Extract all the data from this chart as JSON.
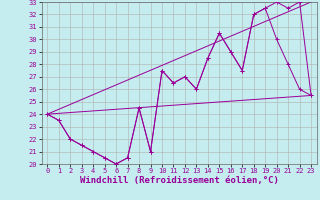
{
  "xlabel": "Windchill (Refroidissement éolien,°C)",
  "background_color": "#c5ecee",
  "grid_color": "#b0b0b0",
  "line_color": "#990099",
  "xlim": [
    -0.5,
    23.5
  ],
  "ylim": [
    20,
    33
  ],
  "yticks": [
    20,
    21,
    22,
    23,
    24,
    25,
    26,
    27,
    28,
    29,
    30,
    31,
    32,
    33
  ],
  "xticks": [
    0,
    1,
    2,
    3,
    4,
    5,
    6,
    7,
    8,
    9,
    10,
    11,
    12,
    13,
    14,
    15,
    16,
    17,
    18,
    19,
    20,
    21,
    22,
    23
  ],
  "line1_x": [
    0,
    1,
    2,
    3,
    4,
    5,
    6,
    7,
    8,
    9,
    10,
    11,
    12,
    13,
    14,
    15,
    16,
    17,
    18,
    19,
    20,
    21,
    22,
    23
  ],
  "line1_y": [
    24.0,
    23.5,
    22.0,
    21.5,
    21.0,
    20.5,
    20.0,
    20.5,
    24.5,
    21.0,
    27.5,
    26.5,
    27.0,
    26.0,
    28.5,
    30.5,
    29.0,
    27.5,
    32.0,
    32.5,
    30.0,
    28.0,
    26.0,
    25.5
  ],
  "line2_x": [
    0,
    1,
    2,
    3,
    4,
    5,
    6,
    7,
    8,
    9,
    10,
    11,
    12,
    13,
    14,
    15,
    16,
    17,
    18,
    19,
    20,
    21,
    22,
    23
  ],
  "line2_y": [
    24.0,
    23.5,
    22.0,
    21.5,
    21.0,
    20.5,
    20.0,
    20.5,
    24.5,
    21.0,
    27.5,
    26.5,
    27.0,
    26.0,
    28.5,
    30.5,
    29.0,
    27.5,
    32.0,
    32.5,
    33.0,
    32.5,
    33.0,
    25.5
  ],
  "line3_x": [
    0,
    23
  ],
  "line3_y": [
    24.0,
    25.5
  ],
  "line4_x": [
    0,
    23
  ],
  "line4_y": [
    24.0,
    33.0
  ],
  "tick_fontsize": 5,
  "label_fontsize": 6.5
}
